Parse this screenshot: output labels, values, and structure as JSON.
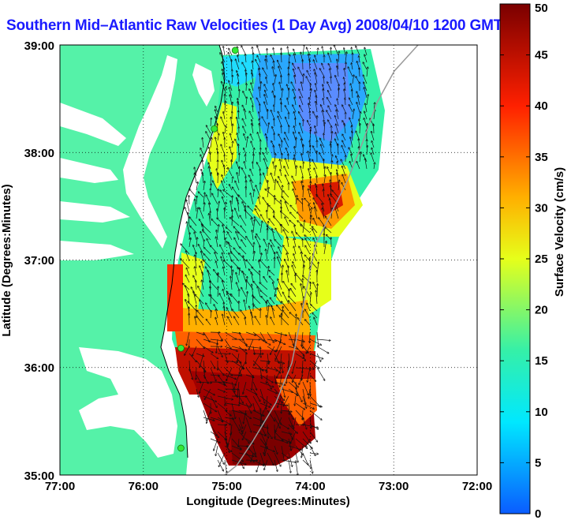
{
  "title": "Southern Mid–Atlantic Raw Velocities (1 Day Avg) 2008/04/10 1200 GMT",
  "x_axis": {
    "label": "Longitude (Degrees:Minutes)",
    "ticks": [
      "77:00",
      "76:00",
      "75:00",
      "74:00",
      "73:00",
      "72:00"
    ]
  },
  "y_axis": {
    "label": "Latitude (Degrees:Minutes)",
    "ticks": [
      "39:00",
      "38:00",
      "37:00",
      "36:00",
      "35:00"
    ]
  },
  "colorbar": {
    "label": "Surface Velocity (cm/s)",
    "ticks": [
      "50",
      "45",
      "40",
      "35",
      "30",
      "25",
      "20",
      "15",
      "10",
      "5",
      "0"
    ],
    "min": 0,
    "max": 50
  },
  "colors": {
    "land": "#55f2a8",
    "water": "#ffffff",
    "title": "#1a1aff",
    "station": "#35e835"
  },
  "map": {
    "lon_range": [
      -77,
      -72
    ],
    "lat_range": [
      35,
      39
    ],
    "grid": "dotted",
    "stations": [
      {
        "lon": -74.9,
        "lat": 38.95
      },
      {
        "lon": -75.15,
        "lat": 38.22
      },
      {
        "lon": -75.55,
        "lat": 36.18
      },
      {
        "lon": -75.55,
        "lat": 35.25
      }
    ]
  }
}
